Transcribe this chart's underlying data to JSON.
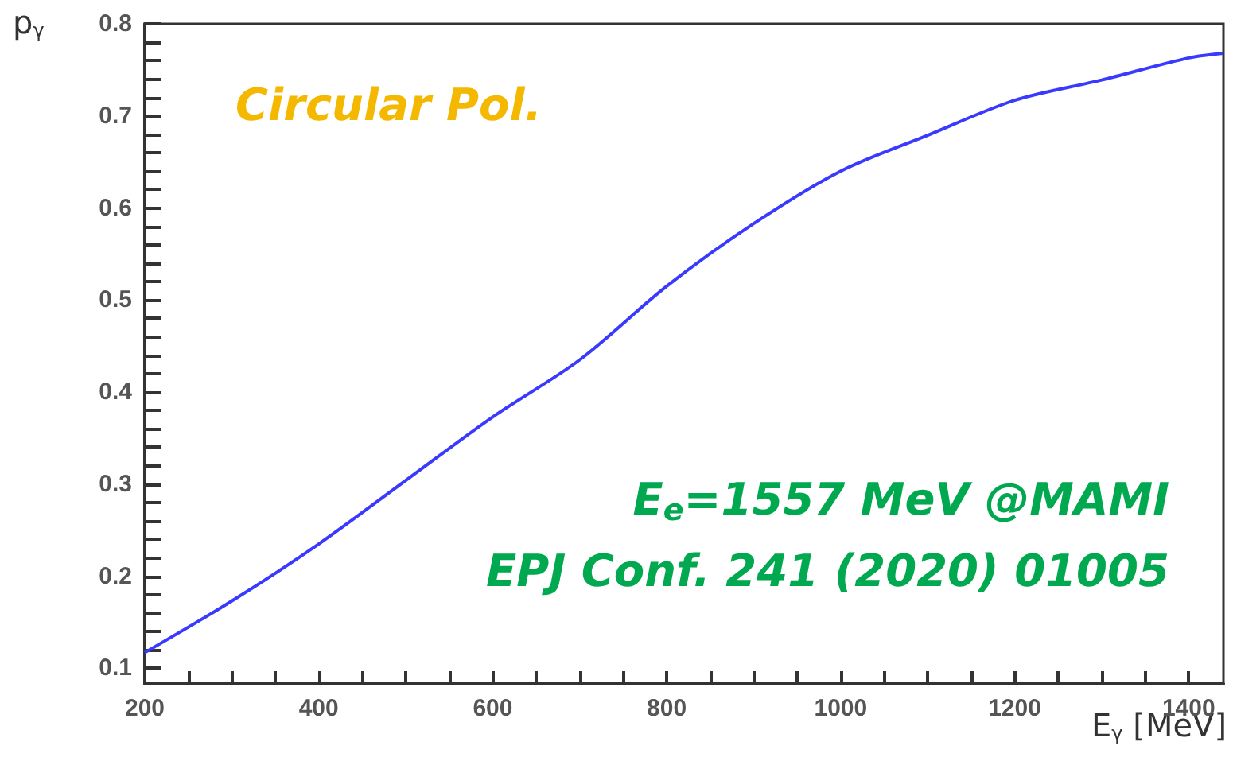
{
  "chart_data": {
    "type": "line",
    "xlabel": "E$_{γ}$ [MeV]",
    "ylabel": "p$_{γ}$",
    "x": [
      200,
      300,
      400,
      500,
      600,
      700,
      800,
      900,
      1000,
      1100,
      1200,
      1300,
      1400,
      1440
    ],
    "series": [
      {
        "color": "#3a3aff",
        "values": [
          0.117,
          0.173,
          0.235,
          0.304,
          0.373,
          0.435,
          0.515,
          0.583,
          0.64,
          0.679,
          0.717,
          0.739,
          0.763,
          0.768
        ]
      }
    ],
    "xlim": [
      200,
      1440
    ],
    "xticks": [
      200,
      {
        "value": 250,
        "label": null
      },
      {
        "value": 300,
        "label": null
      },
      {
        "value": 350,
        "label": null
      },
      400,
      {
        "value": 450,
        "label": null
      },
      {
        "value": 500,
        "label": null
      },
      {
        "value": 550,
        "label": null
      },
      600,
      {
        "value": 650,
        "label": null
      },
      {
        "value": 700,
        "label": null
      },
      {
        "value": 750,
        "label": null
      },
      800,
      {
        "value": 850,
        "label": null
      },
      {
        "value": 900,
        "label": null
      },
      {
        "value": 950,
        "label": null
      },
      1000,
      {
        "value": 1050,
        "label": null
      },
      {
        "value": 1100,
        "label": null
      },
      {
        "value": 1150,
        "label": null
      },
      1200,
      {
        "value": 1250,
        "label": null
      },
      {
        "value": 1300,
        "label": null
      },
      {
        "value": 1350,
        "label": null
      },
      1400
    ],
    "ylim": [
      0.083,
      0.8
    ],
    "yticks": [
      0.1,
      {
        "value": 0.12,
        "label": null
      },
      {
        "value": 0.14,
        "label": null
      },
      {
        "value": 0.16,
        "label": null
      },
      {
        "value": 0.18,
        "label": null
      },
      0.2,
      {
        "value": 0.22,
        "label": null
      },
      {
        "value": 0.24,
        "label": null
      },
      {
        "value": 0.26,
        "label": null
      },
      {
        "value": 0.28,
        "label": null
      },
      0.3,
      {
        "value": 0.32,
        "label": null
      },
      {
        "value": 0.34,
        "label": null
      },
      {
        "value": 0.36,
        "label": null
      },
      {
        "value": 0.38,
        "label": null
      },
      0.4,
      {
        "value": 0.42,
        "label": null
      },
      {
        "value": 0.44,
        "label": null
      },
      {
        "value": 0.46,
        "label": null
      },
      {
        "value": 0.48,
        "label": null
      },
      0.5,
      {
        "value": 0.52,
        "label": null
      },
      {
        "value": 0.54,
        "label": null
      },
      {
        "value": 0.56,
        "label": null
      },
      {
        "value": 0.58,
        "label": null
      },
      0.6,
      {
        "value": 0.62,
        "label": null
      },
      {
        "value": 0.64,
        "label": null
      },
      {
        "value": 0.66,
        "label": null
      },
      {
        "value": 0.68,
        "label": null
      },
      0.7,
      {
        "value": 0.72,
        "label": null
      },
      {
        "value": 0.74,
        "label": null
      },
      {
        "value": 0.76,
        "label": null
      },
      {
        "value": 0.78,
        "label": null
      },
      0.8
    ],
    "marker": "none",
    "line_style": "solid",
    "annotations": [
      "Circular Pol.",
      "E$_{e}$=1557 MeV @MAMI",
      "EPJ Conf. 241 (2020) 01005"
    ]
  }
}
